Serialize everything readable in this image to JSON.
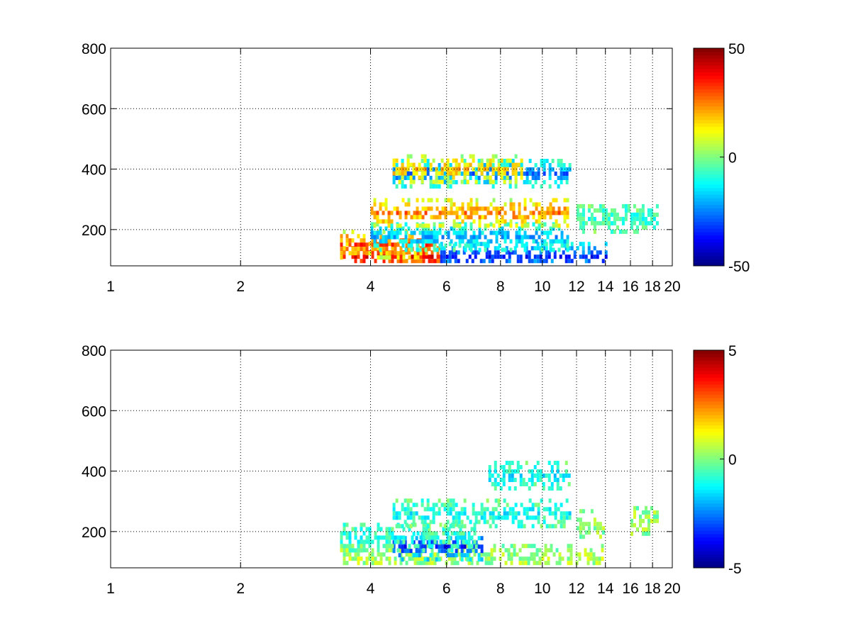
{
  "chart_data": [
    {
      "type": "heatmap",
      "title": "",
      "xlabel": "",
      "ylabel": "",
      "xlim": [
        1,
        20
      ],
      "ylim": [
        80,
        800
      ],
      "x_scale": "log",
      "grid": true,
      "xticks": [
        1,
        2,
        4,
        6,
        8,
        10,
        12,
        14,
        16,
        18,
        20
      ],
      "xtick_labels": [
        "1",
        "2",
        "4",
        "6",
        "8",
        "10",
        "12",
        "14",
        "16",
        "18",
        "20"
      ],
      "yticks": [
        200,
        400,
        600,
        800
      ],
      "ytick_labels": [
        "200",
        "400",
        "600",
        "800"
      ],
      "colorbar": {
        "colormap": "jet",
        "clim": [
          -50,
          50
        ],
        "ticks": [
          -50,
          0,
          50
        ],
        "tick_labels": [
          "-50",
          "0",
          "50"
        ]
      },
      "bands": [
        {
          "y": 110,
          "x_range": [
            3.4,
            5.8
          ],
          "value": 38
        },
        {
          "y": 110,
          "x_range": [
            5.8,
            14
          ],
          "value": -35
        },
        {
          "y": 150,
          "x_range": [
            3.4,
            5.6
          ],
          "value": 30
        },
        {
          "y": 175,
          "x_range": [
            4,
            11.5
          ],
          "value": -20
        },
        {
          "y": 255,
          "x_range": [
            4,
            11.5
          ],
          "value": 25
        },
        {
          "y": 235,
          "x_range": [
            12,
            18.5
          ],
          "value": -8
        },
        {
          "y": 385,
          "x_range": [
            4.5,
            11.5
          ],
          "value": -25
        },
        {
          "y": 400,
          "x_range": [
            4.5,
            9
          ],
          "value": 18
        }
      ]
    },
    {
      "type": "heatmap",
      "title": "",
      "xlabel": "",
      "ylabel": "",
      "xlim": [
        1,
        20
      ],
      "ylim": [
        80,
        800
      ],
      "x_scale": "log",
      "grid": true,
      "xticks": [
        1,
        2,
        4,
        6,
        8,
        10,
        12,
        14,
        16,
        18,
        20
      ],
      "xtick_labels": [
        "1",
        "2",
        "4",
        "6",
        "8",
        "10",
        "12",
        "14",
        "16",
        "18",
        "20"
      ],
      "yticks": [
        200,
        400,
        600,
        800
      ],
      "ytick_labels": [
        "200",
        "400",
        "600",
        "800"
      ],
      "colorbar": {
        "colormap": "jet",
        "clim": [
          -5,
          5
        ],
        "ticks": [
          -5,
          0,
          5
        ],
        "tick_labels": [
          "-5",
          "0",
          "5"
        ]
      },
      "bands": [
        {
          "y": 110,
          "x_range": [
            3.4,
            14
          ],
          "value": 0.4
        },
        {
          "y": 150,
          "x_range": [
            4.5,
            7.2
          ],
          "value": -3.5
        },
        {
          "y": 180,
          "x_range": [
            3.4,
            7
          ],
          "value": -1
        },
        {
          "y": 260,
          "x_range": [
            4.5,
            11.5
          ],
          "value": -1.2
        },
        {
          "y": 385,
          "x_range": [
            7.5,
            11.5
          ],
          "value": -1.3
        },
        {
          "y": 235,
          "x_range": [
            16,
            18.5
          ],
          "value": 0.3
        },
        {
          "y": 225,
          "x_range": [
            12,
            13.8
          ],
          "value": 0.3
        }
      ]
    }
  ]
}
